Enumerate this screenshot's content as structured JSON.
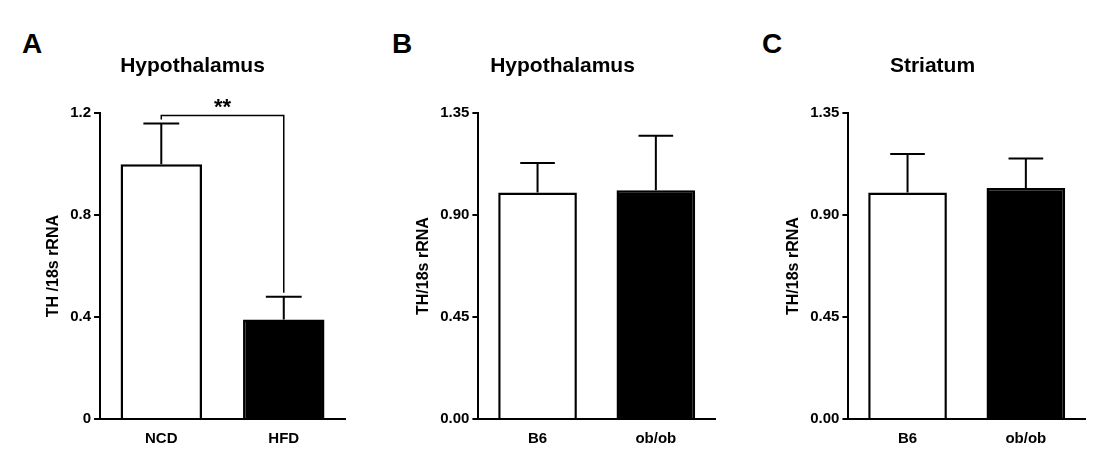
{
  "chart_data": [
    {
      "type": "bar",
      "panel": "A",
      "title": "Hypothalamus",
      "y_label": "TH /18s rRNA",
      "categories": [
        "NCD",
        "HFD"
      ],
      "values": [
        1.0,
        0.39
      ],
      "errors": [
        0.16,
        0.09
      ],
      "colors": [
        "#ffffff",
        "#000000"
      ],
      "ylim": [
        0,
        1.2
      ],
      "yticks": [
        0,
        0.4,
        0.8,
        1.2
      ],
      "grid": false,
      "significance": {
        "label": "**",
        "categories": [
          "NCD",
          "HFD"
        ]
      }
    },
    {
      "type": "bar",
      "panel": "B",
      "title": "Hypothalamus",
      "y_label": "TH/18s rRNA",
      "categories": [
        "B6",
        "ob/ob"
      ],
      "values": [
        1.0,
        1.01
      ],
      "errors": [
        0.13,
        0.24
      ],
      "colors": [
        "#ffffff",
        "#000000"
      ],
      "ylim": [
        0,
        1.35
      ],
      "yticks": [
        {
          "value": 0,
          "label": "0.00"
        },
        0.45,
        {
          "value": 0.9,
          "label": "0.90"
        },
        1.35
      ],
      "grid": false
    },
    {
      "type": "bar",
      "panel": "C",
      "title": "Striatum",
      "y_label": "TH/18s rRNA",
      "categories": [
        "B6",
        "ob/ob"
      ],
      "values": [
        1.0,
        1.02
      ],
      "errors": [
        0.17,
        0.13
      ],
      "colors": [
        "#ffffff",
        "#000000"
      ],
      "ylim": [
        0,
        1.35
      ],
      "yticks": [
        {
          "value": 0,
          "label": "0.00"
        },
        0.45,
        {
          "value": 0.9,
          "label": "0.90"
        },
        1.35
      ],
      "grid": false
    }
  ]
}
